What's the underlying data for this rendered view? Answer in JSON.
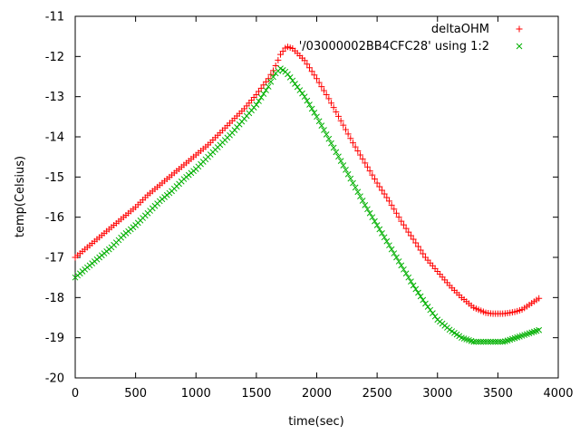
{
  "chart_data": {
    "type": "scatter",
    "title": "",
    "xlabel": "time(sec)",
    "ylabel": "temp(Celsius)",
    "xlim": [
      0,
      4000
    ],
    "ylim": [
      -20,
      -11
    ],
    "xticks": [
      "0",
      "500",
      "1000",
      "1500",
      "2000",
      "2500",
      "3000",
      "3500",
      "4000"
    ],
    "yticks": [
      "-11",
      "-12",
      "-13",
      "-14",
      "-15",
      "-16",
      "-17",
      "-18",
      "-19",
      "-20"
    ],
    "grid": false,
    "legend_position": "top-right",
    "series": [
      {
        "name": "deltaOHM",
        "marker": "plus",
        "color": "#ff0000",
        "x": [
          0,
          100,
          200,
          300,
          400,
          500,
          600,
          700,
          800,
          900,
          1000,
          1100,
          1200,
          1300,
          1400,
          1500,
          1600,
          1650,
          1700,
          1750,
          1800,
          1900,
          2000,
          2100,
          2200,
          2300,
          2400,
          2500,
          2600,
          2700,
          2800,
          2900,
          3000,
          3100,
          3200,
          3300,
          3400,
          3450,
          3500,
          3550,
          3600,
          3650,
          3700,
          3750,
          3800,
          3850
        ],
        "y": [
          -17.0,
          -16.75,
          -16.5,
          -16.25,
          -16.0,
          -15.75,
          -15.45,
          -15.2,
          -14.95,
          -14.7,
          -14.45,
          -14.2,
          -13.9,
          -13.6,
          -13.3,
          -12.95,
          -12.55,
          -12.3,
          -11.95,
          -11.75,
          -11.8,
          -12.1,
          -12.55,
          -13.05,
          -13.6,
          -14.15,
          -14.65,
          -15.15,
          -15.6,
          -16.1,
          -16.55,
          -17.0,
          -17.35,
          -17.7,
          -18.0,
          -18.25,
          -18.38,
          -18.4,
          -18.4,
          -18.4,
          -18.38,
          -18.35,
          -18.3,
          -18.2,
          -18.1,
          -18.0
        ]
      },
      {
        "name": "'/03000002BB4CFC28' using 1:2",
        "marker": "cross",
        "color": "#00b000",
        "x": [
          0,
          100,
          200,
          300,
          400,
          500,
          600,
          700,
          800,
          900,
          1000,
          1100,
          1200,
          1300,
          1400,
          1500,
          1600,
          1650,
          1700,
          1750,
          1800,
          1900,
          2000,
          2100,
          2200,
          2300,
          2400,
          2500,
          2600,
          2700,
          2800,
          2900,
          3000,
          3100,
          3200,
          3300,
          3400,
          3450,
          3500,
          3550,
          3600,
          3650,
          3700,
          3750,
          3800,
          3850
        ],
        "y": [
          -17.5,
          -17.25,
          -17.0,
          -16.75,
          -16.45,
          -16.2,
          -15.9,
          -15.6,
          -15.35,
          -15.05,
          -14.8,
          -14.5,
          -14.2,
          -13.9,
          -13.55,
          -13.2,
          -12.75,
          -12.45,
          -12.3,
          -12.4,
          -12.6,
          -13.0,
          -13.5,
          -14.05,
          -14.6,
          -15.15,
          -15.7,
          -16.2,
          -16.7,
          -17.2,
          -17.7,
          -18.15,
          -18.55,
          -18.8,
          -19.0,
          -19.1,
          -19.1,
          -19.1,
          -19.1,
          -19.1,
          -19.05,
          -19.0,
          -18.95,
          -18.9,
          -18.85,
          -18.8
        ]
      }
    ]
  }
}
